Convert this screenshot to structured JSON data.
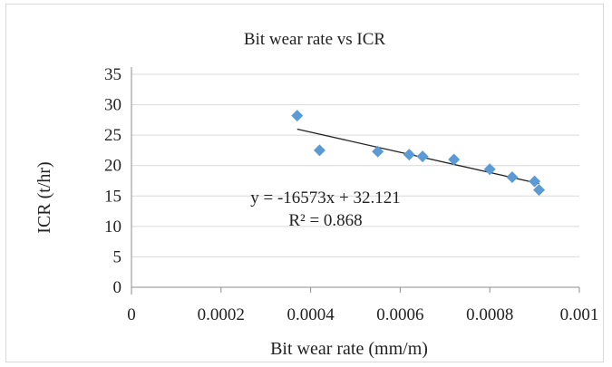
{
  "chart_data": {
    "type": "scatter",
    "title": "Bit wear rate vs ICR",
    "xlabel": "Bit wear rate (mm/m)",
    "ylabel": "ICR (t/hr)",
    "xlim": [
      0,
      0.001
    ],
    "ylim": [
      0,
      35
    ],
    "x_ticks": [
      "0",
      "0.0002",
      "0.0004",
      "0.0006",
      "0.0008",
      "0.001"
    ],
    "y_ticks": [
      "0",
      "5",
      "10",
      "15",
      "20",
      "25",
      "30",
      "35"
    ],
    "grid": "horizontal",
    "legend": "none",
    "marker_color": "#5b9bd5",
    "trendline_color": "#222222",
    "points": [
      {
        "x": 0.00037,
        "y": 28.2
      },
      {
        "x": 0.00042,
        "y": 22.5
      },
      {
        "x": 0.00055,
        "y": 22.3
      },
      {
        "x": 0.00062,
        "y": 21.8
      },
      {
        "x": 0.00065,
        "y": 21.5
      },
      {
        "x": 0.00072,
        "y": 21.0
      },
      {
        "x": 0.0008,
        "y": 19.4
      },
      {
        "x": 0.00085,
        "y": 18.1
      },
      {
        "x": 0.0009,
        "y": 17.4
      },
      {
        "x": 0.00091,
        "y": 16.0
      }
    ],
    "trendline": {
      "type": "linear",
      "slope": -16573,
      "intercept": 32.121,
      "x_range": [
        0.00037,
        0.00091
      ],
      "equation": "y = -16573x + 32.121",
      "r_squared": "R² = 0.868"
    }
  }
}
